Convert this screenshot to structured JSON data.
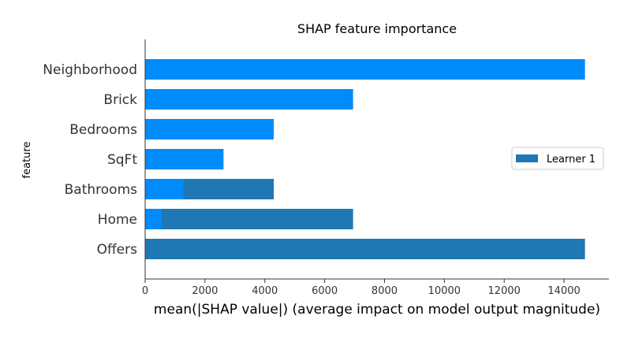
{
  "chart_data": {
    "type": "bar",
    "orientation": "horizontal",
    "title": "SHAP feature importance",
    "xlabel": "mean(|SHAP value|) (average impact on model output magnitude)",
    "ylabel": "feature",
    "xlim": [
      0,
      15500
    ],
    "xticks": [
      0,
      2000,
      4000,
      6000,
      8000,
      10000,
      12000,
      14000
    ],
    "categories": [
      "Neighborhood",
      "Brick",
      "Bedrooms",
      "SqFt",
      "Bathrooms",
      "Home",
      "Offers"
    ],
    "series": [
      {
        "name": "Learner 1",
        "color": "#1f77b4",
        "values": [
          0,
          0,
          0,
          0,
          4300,
          6950,
          14700
        ]
      },
      {
        "color": "#008bfb",
        "values": [
          14700,
          6950,
          4300,
          2620,
          1280,
          550,
          0
        ]
      }
    ],
    "legend": {
      "position": "right",
      "entries": [
        "Learner 1"
      ]
    },
    "grid": false
  }
}
